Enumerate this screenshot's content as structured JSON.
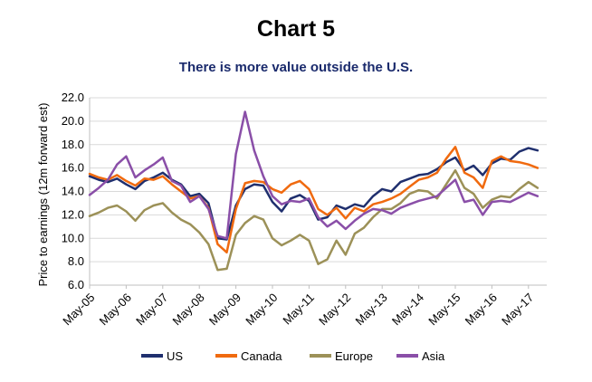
{
  "chart_data": {
    "type": "line",
    "title": "Chart 5",
    "subtitle": "There is more value outside the U.S.",
    "xlabel": "",
    "ylabel": "Price to earnings (12m forward est)",
    "ylim": [
      6.0,
      22.0
    ],
    "y_ticks": [
      "6.0",
      "8.0",
      "10.0",
      "12.0",
      "14.0",
      "16.0",
      "18.0",
      "20.0",
      "22.0"
    ],
    "x_ticks": [
      "May-05",
      "May-06",
      "May-07",
      "May-08",
      "May-09",
      "May-10",
      "May-11",
      "May-12",
      "May-13",
      "May-14",
      "May-15",
      "May-16",
      "May-17"
    ],
    "grid": true,
    "legend_position": "bottom",
    "x": [
      "2005-05",
      "2005-08",
      "2005-11",
      "2006-02",
      "2006-05",
      "2006-08",
      "2006-11",
      "2007-02",
      "2007-05",
      "2007-08",
      "2007-11",
      "2008-02",
      "2008-05",
      "2008-08",
      "2008-11",
      "2009-02",
      "2009-05",
      "2009-08",
      "2009-11",
      "2010-02",
      "2010-05",
      "2010-08",
      "2010-11",
      "2011-02",
      "2011-05",
      "2011-08",
      "2011-11",
      "2012-02",
      "2012-05",
      "2012-08",
      "2012-11",
      "2013-02",
      "2013-05",
      "2013-08",
      "2013-11",
      "2014-02",
      "2014-05",
      "2014-08",
      "2014-11",
      "2015-02",
      "2015-05",
      "2015-08",
      "2015-11",
      "2016-02",
      "2016-05",
      "2016-08",
      "2016-11",
      "2017-02",
      "2017-05",
      "2017-08"
    ],
    "series": [
      {
        "name": "US",
        "color": "#1f2f6e",
        "values": [
          15.3,
          15.0,
          14.8,
          15.1,
          14.6,
          14.2,
          14.9,
          15.2,
          15.6,
          15.0,
          14.6,
          13.6,
          13.8,
          13.0,
          10.0,
          9.9,
          12.8,
          14.2,
          14.6,
          14.5,
          13.1,
          12.3,
          13.4,
          13.7,
          13.2,
          11.6,
          11.8,
          12.8,
          12.5,
          12.9,
          12.7,
          13.6,
          14.2,
          14.0,
          14.8,
          15.1,
          15.4,
          15.5,
          15.9,
          16.5,
          16.9,
          15.8,
          16.2,
          15.4,
          16.4,
          16.8,
          16.7,
          17.4,
          17.7,
          17.5
        ]
      },
      {
        "name": "Canada",
        "color": "#f06a0f",
        "values": [
          15.5,
          15.2,
          15.0,
          15.4,
          14.9,
          14.5,
          15.1,
          15.0,
          15.3,
          14.6,
          14.0,
          13.4,
          13.6,
          12.6,
          9.5,
          8.8,
          12.5,
          14.7,
          14.9,
          14.8,
          14.2,
          13.9,
          14.6,
          14.9,
          14.2,
          12.5,
          12.0,
          12.6,
          11.7,
          12.6,
          12.3,
          12.9,
          13.1,
          13.4,
          13.8,
          14.4,
          15.0,
          15.2,
          15.6,
          16.8,
          17.8,
          15.6,
          15.2,
          14.3,
          16.6,
          17.0,
          16.6,
          16.5,
          16.3,
          16.0
        ]
      },
      {
        "name": "Europe",
        "color": "#9c9158",
        "values": [
          11.9,
          12.2,
          12.6,
          12.8,
          12.3,
          11.5,
          12.4,
          12.8,
          13.0,
          12.2,
          11.6,
          11.2,
          10.5,
          9.5,
          7.3,
          7.4,
          10.3,
          11.3,
          11.9,
          11.6,
          10.0,
          9.4,
          9.8,
          10.3,
          9.8,
          7.8,
          8.2,
          9.8,
          8.6,
          10.4,
          10.9,
          11.8,
          12.5,
          12.5,
          13.0,
          13.8,
          14.1,
          14.0,
          13.4,
          14.6,
          15.8,
          14.3,
          13.8,
          12.6,
          13.3,
          13.6,
          13.5,
          14.2,
          14.8,
          14.3
        ]
      },
      {
        "name": "Asia",
        "color": "#8a4fa8",
        "values": [
          13.7,
          14.3,
          15.0,
          16.3,
          17.0,
          15.2,
          15.8,
          16.3,
          16.9,
          14.9,
          14.5,
          13.1,
          13.6,
          12.5,
          10.2,
          10.0,
          17.2,
          20.8,
          17.5,
          15.3,
          13.6,
          12.9,
          13.2,
          13.1,
          13.4,
          11.8,
          11.0,
          11.5,
          10.8,
          11.5,
          12.1,
          12.5,
          12.4,
          12.1,
          12.6,
          12.9,
          13.2,
          13.4,
          13.6,
          14.3,
          15.0,
          13.1,
          13.3,
          12.0,
          13.1,
          13.2,
          13.1,
          13.5,
          13.9,
          13.6
        ]
      }
    ]
  }
}
